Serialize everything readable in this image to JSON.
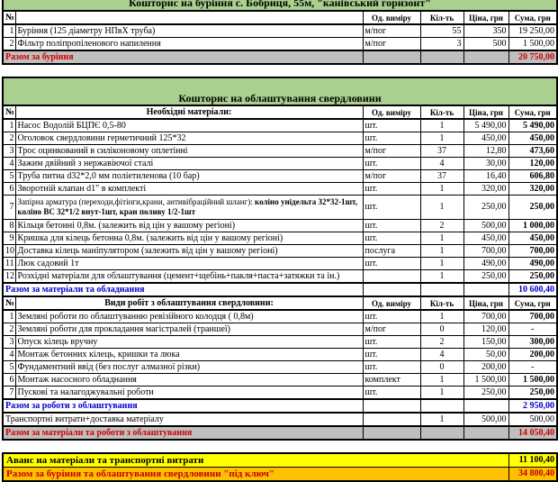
{
  "colors": {
    "section_green": "#a9d08e",
    "total_gray": "#bfbfbf",
    "total_red_text": "#d10000",
    "subtotal_blue_text": "#0000cd",
    "advance_yellow": "#ffff00",
    "final_orange": "#ffc000"
  },
  "columns": {
    "num": "№",
    "unit": "Од. виміру",
    "qty": "Кіл-ть",
    "price": "Ціна, грн",
    "sum": "Сума, грн"
  },
  "table1": {
    "title": "Кошторис на буріння с. Бобриця, 55м, \"канівський горизонт\"",
    "rows": [
      {
        "n": "1",
        "desc": "Буріння (125 діаметру НПвХ труба)",
        "unit": "м/пог",
        "qty": "55",
        "price": "350",
        "sum": "19 250,00"
      },
      {
        "n": "2",
        "desc": "Фільтр поліпропіленового напилення",
        "unit": "м/пог",
        "qty": "3",
        "price": "500",
        "sum": "1 500,00"
      }
    ],
    "total_label": "Разом за буріння",
    "total_sum": "20 750,00"
  },
  "table2": {
    "title": "Кошторис на облаштування свердловини",
    "materials": {
      "header": "Необхідні матеріали:",
      "rows": [
        {
          "n": "1",
          "desc": "Насос Водолій БЦПЄ 0,5-80",
          "unit": "шт.",
          "qty": "1",
          "price": "5 490,00",
          "sum": "5 490,00"
        },
        {
          "n": "2",
          "desc": "Оголовок свердловини герметичний 125*32",
          "unit": "шт.",
          "qty": "1",
          "price": "450,00",
          "sum": "450,00"
        },
        {
          "n": "3",
          "desc": "Трос оцинкований в силіконовому оплетінні",
          "unit": "м/пог",
          "qty": "37",
          "price": "12,80",
          "sum": "473,60"
        },
        {
          "n": "4",
          "desc": "Зажим двійний з нержавіючої сталі",
          "unit": "шт.",
          "qty": "4",
          "price": "30,00",
          "sum": "120,00"
        },
        {
          "n": "5",
          "desc": "Труба питна d32*2,0 мм поліетиленова (10 бар)",
          "unit": "м/пог",
          "qty": "37",
          "price": "16,40",
          "sum": "606,80"
        },
        {
          "n": "6",
          "desc": "Зворотній клапан d1\" в комплекті",
          "unit": "шт.",
          "qty": "1",
          "price": "320,00",
          "sum": "320,00"
        },
        {
          "n": "7",
          "desc": "Запірна арматура (переходи,фітінги,крани, антивібраційний шланг): ",
          "desc_bold": "коліно унідельта 32*32-1шт, коліно ВС 32*1/2 внут-1шт, кран поливу 1/2-1шт",
          "unit": "шт.",
          "qty": "1",
          "price": "250,00",
          "sum": "250,00",
          "tall": true
        },
        {
          "n": "8",
          "desc": "Кільця бетонні 0,8м.  (залежить від цін у вашому регіоні)",
          "unit": "шт.",
          "qty": "2",
          "price": "500,00",
          "sum": "1 000,00"
        },
        {
          "n": "9",
          "desc": "Кришка для кілець бетонна 0,8м.  (залежить від цін у вашому регіоні)",
          "unit": "шт.",
          "qty": "1",
          "price": "450,00",
          "sum": "450,00"
        },
        {
          "n": "10",
          "desc": "Доставка кілець маніпулятором (залежить від цін у вашому регіоні)",
          "unit": "послуга",
          "qty": "1",
          "price": "700,00",
          "sum": "700,00"
        },
        {
          "n": "11",
          "desc": "Люк садовий 1т",
          "unit": "шт.",
          "qty": "1",
          "price": "490,00",
          "sum": "490,00"
        },
        {
          "n": "12",
          "desc": "Розхідні матеріали для облаштування (цемент+щебінь+пакля+паста+затяжки та ін.)",
          "unit": "",
          "qty": "1",
          "price": "250,00",
          "sum": "250,00"
        }
      ],
      "total_label": "Разом за матеріали та обладнання",
      "total_sum": "10 600,40"
    },
    "works": {
      "header": "Види робіт з облаштування свердловини:",
      "rows": [
        {
          "n": "1",
          "desc": "Земляні роботи по облаштуванню ревізійного колодця ( 0,8м)",
          "unit": "шт.",
          "qty": "1",
          "price": "700,00",
          "sum": "700,00"
        },
        {
          "n": "2",
          "desc": "Земляні роботи для прокладання магістралей (траншеї)",
          "unit": "м/пог",
          "qty": "0",
          "price": "120,00",
          "sum": "-"
        },
        {
          "n": "3",
          "desc": "Опуск кілець вручну",
          "unit": "шт.",
          "qty": "2",
          "price": "150,00",
          "sum": "300,00"
        },
        {
          "n": "4",
          "desc": "Монтаж бетонних кілець, кришки та люка",
          "unit": "шт.",
          "qty": "4",
          "price": "50,00",
          "sum": "200,00"
        },
        {
          "n": "5",
          "desc": "Фундаментний ввід (без послуг алмазної різки)",
          "unit": "шт.",
          "qty": "0",
          "price": "200,00",
          "sum": "-"
        },
        {
          "n": "6",
          "desc": "Монтаж насосного обладнання",
          "unit": "комплект",
          "qty": "1",
          "price": "1 500,00",
          "sum": "1 500,00"
        },
        {
          "n": "7",
          "desc": "Пускові та налагоджувальні роботи",
          "unit": "шт.",
          "qty": "1",
          "price": "250,00",
          "sum": "250,00"
        }
      ],
      "total_label": "Разом за роботи з облаштування",
      "total_sum": "2 950,00"
    },
    "transport": {
      "desc": "Транспортні витрати+доставка матеріалу",
      "qty": "1",
      "price": "500,00",
      "sum": "500,00"
    },
    "grand": {
      "label": "Разом за матеріали та роботи з облаштування",
      "sum": "14 050,40"
    }
  },
  "summary": {
    "advance_label": "Аванс на матеріали та транспортні витрати",
    "advance_sum": "11 100,40",
    "final_label": "Разом за буріння та облаштування свердловини \"під ключ\"",
    "final_sum": "34 800,40"
  }
}
